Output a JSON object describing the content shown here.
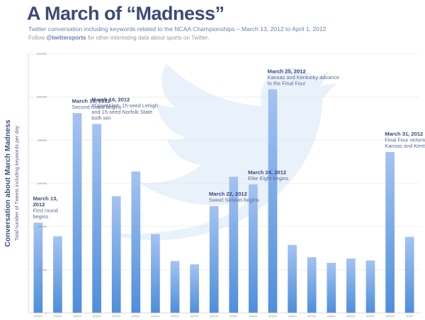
{
  "header": {
    "title": "A March of “Madness”",
    "subtitle": "Twitter conversation including keywords related to the NCAA Championships – March 13, 2012 to April 1, 2012",
    "follow_prefix": "Follow ",
    "follow_handle": "@twittersports",
    "follow_suffix": " for other interesting data about sports on Twitter."
  },
  "chart_data": {
    "type": "bar",
    "ylabel": "Conversation about March Madness",
    "ylabel_sub": "Total number of Tweets including keywords per day",
    "ylim": [
      0,
      1200000
    ],
    "yticks": [
      0,
      200000,
      400000,
      600000,
      800000,
      1000000,
      1200000
    ],
    "ytick_labels": [
      "0",
      "200000",
      "400000",
      "600000",
      "800000",
      "1000000",
      "1200000"
    ],
    "categories": [
      "3/13/12",
      "3/14/12",
      "3/15/12",
      "3/16/12",
      "3/17/12",
      "3/18/12",
      "3/19/12",
      "3/20/12",
      "3/21/12",
      "3/22/12",
      "3/23/12",
      "3/24/12",
      "3/25/12",
      "3/26/12",
      "3/27/12",
      "3/28/12",
      "3/29/12",
      "3/30/12",
      "3/31/12",
      "4/1/12"
    ],
    "values": [
      418000,
      355000,
      925000,
      875000,
      540000,
      655000,
      365000,
      240000,
      225000,
      495000,
      630000,
      595000,
      1035000,
      315000,
      258000,
      232000,
      252000,
      243000,
      745000,
      352000
    ],
    "grid": true,
    "colors": {
      "bar_top": "#a4c3f2",
      "bar_bottom": "#4f8edc",
      "text": "#3c4a78",
      "annotation_body": "#5a6a90",
      "grid": "#e6e6e6",
      "bird": "#e9f1fb"
    },
    "annotations": [
      {
        "date": "March 13, 2012",
        "text": "First round begins",
        "bar_index": 0
      },
      {
        "date": "March 15, 2012",
        "text": "Second round begins",
        "bar_index": 2
      },
      {
        "date": "March 16, 2012",
        "text": "#UpsetAlert: 15-seed Lehigh and 15-seed Norfolk State both win",
        "bar_index": 3
      },
      {
        "date": "March 22, 2012",
        "text": "Sweet Sixteen begins",
        "bar_index": 9
      },
      {
        "date": "March 24, 2012",
        "text": "Elite Eight begins",
        "bar_index": 11
      },
      {
        "date": "March 25, 2012",
        "text": "Kansas and Kentucky advance to the Final Four",
        "bar_index": 12
      },
      {
        "date": "March 31, 2012",
        "text": "Final Four victories for Kansas and Kentucky",
        "bar_index": 18
      }
    ]
  }
}
